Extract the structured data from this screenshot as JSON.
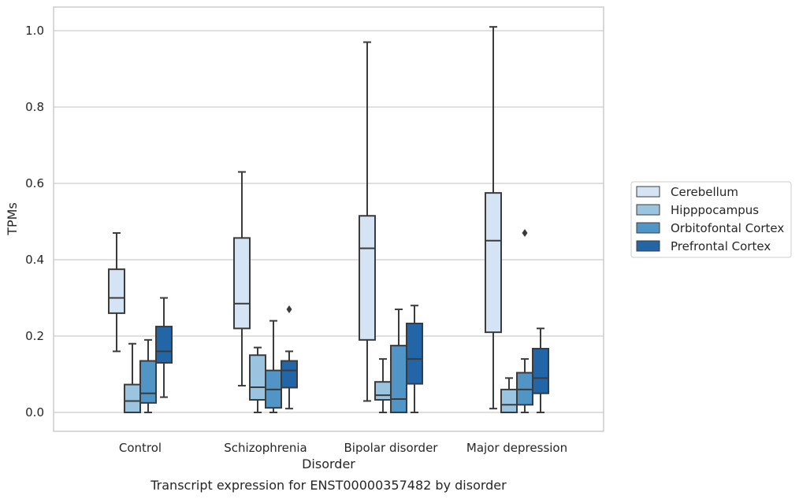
{
  "chart_data": {
    "type": "boxplot",
    "caption": "Transcript expression for ENST00000357482 by disorder",
    "xlabel": "Disorder",
    "ylabel": "TPMs",
    "ylim": [
      -0.048,
      1.063
    ],
    "yticks": [
      0.0,
      0.2,
      0.4,
      0.6,
      0.8,
      1.0
    ],
    "ytick_labels": [
      "0.0",
      "0.2",
      "0.4",
      "0.6",
      "0.8",
      "1.0"
    ],
    "grid": "horizontal",
    "legend_position": "right",
    "categories": [
      "Control",
      "Schizophrenia",
      "Bipolar disorder",
      "Major depression"
    ],
    "series": [
      {
        "name": "Cerebellum",
        "color": "#d4e4f4",
        "boxes": [
          {
            "whisker_low": 0.16,
            "q1": 0.26,
            "median": 0.3,
            "q3": 0.375,
            "whisker_high": 0.47,
            "outliers": []
          },
          {
            "whisker_low": 0.07,
            "q1": 0.22,
            "median": 0.285,
            "q3": 0.457,
            "whisker_high": 0.63,
            "outliers": []
          },
          {
            "whisker_low": 0.03,
            "q1": 0.19,
            "median": 0.43,
            "q3": 0.515,
            "whisker_high": 0.97,
            "outliers": []
          },
          {
            "whisker_low": 0.01,
            "q1": 0.21,
            "median": 0.45,
            "q3": 0.575,
            "whisker_high": 1.01,
            "outliers": []
          }
        ]
      },
      {
        "name": "Hipppocampus",
        "color": "#9ac4df",
        "boxes": [
          {
            "whisker_low": 0.0,
            "q1": 0.0,
            "median": 0.03,
            "q3": 0.073,
            "whisker_high": 0.18,
            "outliers": []
          },
          {
            "whisker_low": 0.0,
            "q1": 0.033,
            "median": 0.066,
            "q3": 0.15,
            "whisker_high": 0.17,
            "outliers": []
          },
          {
            "whisker_low": 0.0,
            "q1": 0.033,
            "median": 0.045,
            "q3": 0.08,
            "whisker_high": 0.14,
            "outliers": []
          },
          {
            "whisker_low": 0.0,
            "q1": 0.0,
            "median": 0.02,
            "q3": 0.06,
            "whisker_high": 0.09,
            "outliers": []
          }
        ]
      },
      {
        "name": "Orbitofontal Cortex",
        "color": "#5194c6",
        "boxes": [
          {
            "whisker_low": 0.0,
            "q1": 0.025,
            "median": 0.05,
            "q3": 0.135,
            "whisker_high": 0.19,
            "outliers": []
          },
          {
            "whisker_low": 0.0,
            "q1": 0.012,
            "median": 0.06,
            "q3": 0.11,
            "whisker_high": 0.24,
            "outliers": []
          },
          {
            "whisker_low": 0.0,
            "q1": 0.0,
            "median": 0.035,
            "q3": 0.175,
            "whisker_high": 0.27,
            "outliers": []
          },
          {
            "whisker_low": 0.0,
            "q1": 0.02,
            "median": 0.06,
            "q3": 0.104,
            "whisker_high": 0.14,
            "outliers": [
              0.47
            ]
          }
        ]
      },
      {
        "name": "Prefrontal Cortex",
        "color": "#2366a8",
        "boxes": [
          {
            "whisker_low": 0.04,
            "q1": 0.13,
            "median": 0.16,
            "q3": 0.225,
            "whisker_high": 0.3,
            "outliers": []
          },
          {
            "whisker_low": 0.01,
            "q1": 0.065,
            "median": 0.11,
            "q3": 0.135,
            "whisker_high": 0.16,
            "outliers": [
              0.27
            ]
          },
          {
            "whisker_low": 0.0,
            "q1": 0.075,
            "median": 0.14,
            "q3": 0.233,
            "whisker_high": 0.28,
            "outliers": []
          },
          {
            "whisker_low": 0.0,
            "q1": 0.05,
            "median": 0.09,
            "q3": 0.167,
            "whisker_high": 0.22,
            "outliers": []
          }
        ]
      }
    ]
  }
}
